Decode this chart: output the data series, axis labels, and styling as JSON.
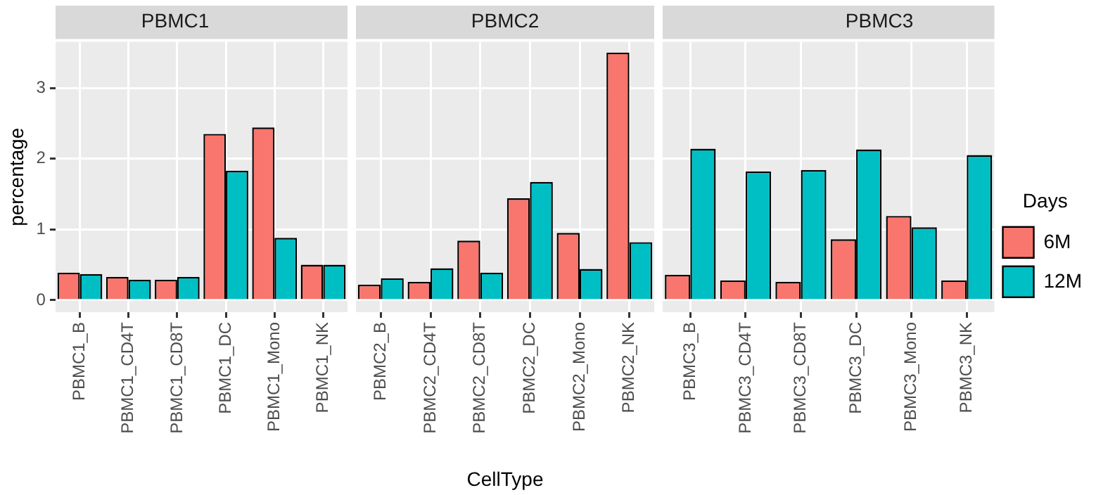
{
  "chart_data": [
    {
      "type": "bar",
      "title": "PBMC1",
      "ylabel": "percentage",
      "categories": [
        "PBMC1_B",
        "PBMC1_CD4T",
        "PBMC1_CD8T",
        "PBMC1_DC",
        "PBMC1_Mono",
        "PBMC1_NK"
      ],
      "series": [
        {
          "color": "#f8766d",
          "values": [
            0.39,
            0.33,
            0.29,
            2.35,
            2.44,
            0.5
          ]
        },
        {
          "color": "#00bfc4",
          "values": [
            0.37,
            0.29,
            0.33,
            1.83,
            0.88,
            0.5
          ]
        }
      ],
      "ylim": [
        -0.17,
        3.65
      ],
      "yticks": [
        0,
        1,
        2,
        3
      ],
      "grid": true,
      "legend": false
    },
    {
      "type": "bar",
      "title": "PBMC2",
      "xlabel": "CellType",
      "categories": [
        "PBMC2_B",
        "PBMC2_CD4T",
        "PBMC2_CD8T",
        "PBMC2_DC",
        "PBMC2_Mono",
        "PBMC2_NK"
      ],
      "series": [
        {
          "color": "#f8766d",
          "values": [
            0.22,
            0.26,
            0.84,
            1.44,
            0.95,
            3.5
          ]
        },
        {
          "color": "#00bfc4",
          "values": [
            0.31,
            0.45,
            0.39,
            1.67,
            0.44,
            0.82
          ]
        }
      ],
      "ylim": [
        -0.17,
        3.65
      ],
      "yticks": [
        0,
        1,
        2,
        3
      ],
      "grid": true,
      "legend": false,
      "tick_labels": "x"
    },
    {
      "type": "bar",
      "title": "PBMC3",
      "legend_title": "Days",
      "categories": [
        "PBMC3_B",
        "PBMC3_CD4T",
        "PBMC3_CD8T",
        "PBMC3_DC",
        "PBMC3_Mono",
        "PBMC3_NK"
      ],
      "series": [
        {
          "name": "6M",
          "color": "#f8766d",
          "values": [
            0.36,
            0.28,
            0.26,
            0.86,
            1.19,
            0.28
          ]
        },
        {
          "name": "12M",
          "color": "#00bfc4",
          "values": [
            2.14,
            1.82,
            1.84,
            2.13,
            1.03,
            2.05
          ]
        }
      ],
      "ylim": [
        -0.17,
        3.65
      ],
      "yticks": [
        0,
        1,
        2,
        3
      ],
      "grid": true,
      "legend": "right",
      "tick_labels": "x"
    }
  ]
}
